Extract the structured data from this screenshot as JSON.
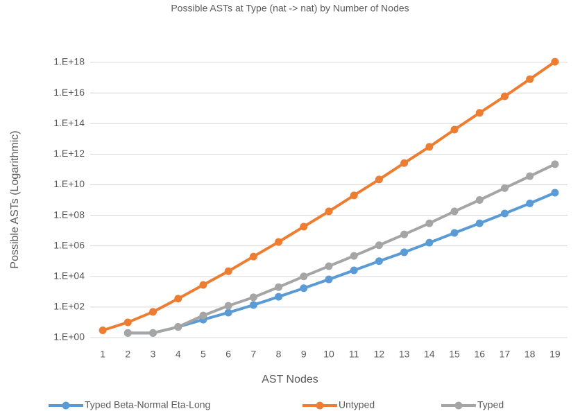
{
  "chart_data": {
    "type": "line",
    "title": "Possible ASTs at Type (nat -> nat) by Number of Nodes",
    "x_label": "AST Nodes",
    "y_label": "Possible ASTs (Logarithmic)",
    "categories": [
      "1",
      "2",
      "3",
      "4",
      "5",
      "6",
      "7",
      "8",
      "9",
      "10",
      "11",
      "12",
      "13",
      "14",
      "15",
      "16",
      "17",
      "18",
      "19"
    ],
    "log_scale": true,
    "grid": true,
    "legend": "bottom",
    "ylim": [
      1,
      1e+18
    ],
    "yticks": [
      {
        "value": 1,
        "label": "1.E+00"
      },
      {
        "value": 100,
        "label": "1.E+02"
      },
      {
        "value": 10000,
        "label": "1.E+04"
      },
      {
        "value": 1000000,
        "label": "1.E+06"
      },
      {
        "value": 100000000,
        "label": "1.E+08"
      },
      {
        "value": 10000000000,
        "label": "1.E+10"
      },
      {
        "value": 1000000000000,
        "label": "1.E+12"
      },
      {
        "value": 100000000000000,
        "label": "1.E+14"
      },
      {
        "value": 10000000000000000,
        "label": "1.E+16"
      },
      {
        "value": 1000000000000000000,
        "label": "1.E+18"
      }
    ],
    "series": [
      {
        "name": "Typed Beta-Normal Eta-Long",
        "color": "#5b9bd5",
        "values": [
          null,
          2,
          2,
          5,
          15,
          43,
          135,
          470,
          1700,
          6400,
          25000,
          100000,
          380000,
          1600000,
          7000000,
          30000000,
          130000000,
          600000000,
          3000000000
        ]
      },
      {
        "name": "Untyped",
        "color": "#ed7d31",
        "values": [
          3,
          10,
          48,
          350,
          2800,
          22000,
          200000,
          1800000,
          18000000,
          180000000,
          2000000000,
          22000000000,
          260000000000,
          3000000000000,
          40000000000000,
          500000000000000,
          6000000000000000,
          80000000000000000,
          1100000000000000000
        ]
      },
      {
        "name": "Typed",
        "color": "#a5a5a5",
        "values": [
          null,
          2,
          2,
          5,
          28,
          120,
          430,
          2000,
          10000,
          47000,
          220000,
          1100000,
          5600000,
          30000000,
          180000000,
          1000000000,
          6000000000,
          36000000000,
          220000000000
        ]
      }
    ]
  }
}
